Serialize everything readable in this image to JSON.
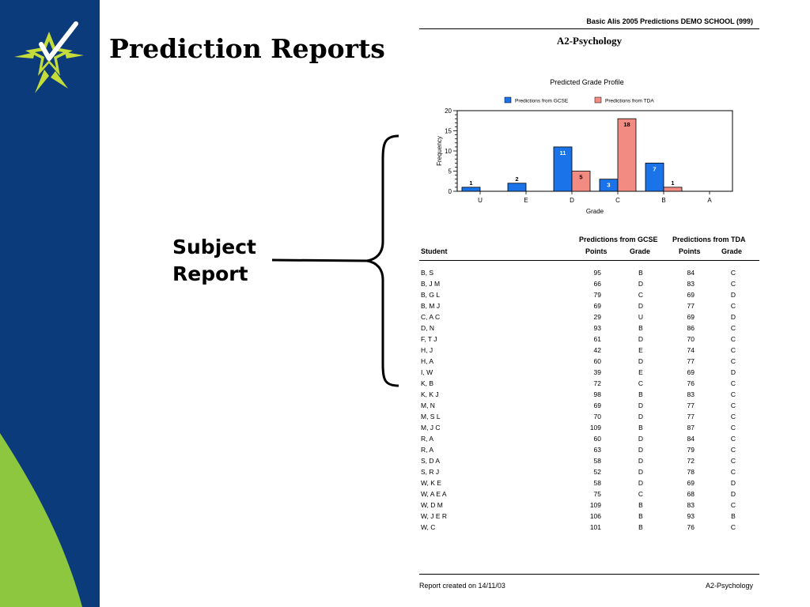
{
  "slide": {
    "title": "Prediction Reports",
    "callout_line1": "Subject",
    "callout_line2": "Report",
    "colors": {
      "sidebar_blue": "#0b3b7a",
      "sidebar_green": "#8dc63f"
    }
  },
  "report": {
    "header": "Basic Alis 2005 Predictions DEMO SCHOOL (999)",
    "subject": "A2-Psychology",
    "footer_left": "Report created on 14/11/03",
    "footer_right": "A2-Psychology",
    "table": {
      "group_headers": [
        "Predictions from GCSE",
        "Predictions from TDA"
      ],
      "columns": [
        "Student",
        "Points",
        "Grade",
        "Points",
        "Grade"
      ],
      "rows": [
        [
          "B, S",
          "95",
          "B",
          "84",
          "C"
        ],
        [
          "B, J M",
          "66",
          "D",
          "83",
          "C"
        ],
        [
          "B, G L",
          "79",
          "C",
          "69",
          "D"
        ],
        [
          "B, M J",
          "69",
          "D",
          "77",
          "C"
        ],
        [
          "C, A C",
          "29",
          "U",
          "69",
          "D"
        ],
        [
          "D, N",
          "93",
          "B",
          "86",
          "C"
        ],
        [
          "F, T J",
          "61",
          "D",
          "70",
          "C"
        ],
        [
          "H, J",
          "42",
          "E",
          "74",
          "C"
        ],
        [
          "H, A",
          "60",
          "D",
          "77",
          "C"
        ],
        [
          "I, W",
          "39",
          "E",
          "69",
          "D"
        ],
        [
          "K, B",
          "72",
          "C",
          "76",
          "C"
        ],
        [
          "K, K J",
          "98",
          "B",
          "83",
          "C"
        ],
        [
          "M, N",
          "69",
          "D",
          "77",
          "C"
        ],
        [
          "M, S L",
          "70",
          "D",
          "77",
          "C"
        ],
        [
          "M, J C",
          "109",
          "B",
          "87",
          "C"
        ],
        [
          "R, A",
          "60",
          "D",
          "84",
          "C"
        ],
        [
          "R, A",
          "63",
          "D",
          "79",
          "C"
        ],
        [
          "S, D A",
          "58",
          "D",
          "72",
          "C"
        ],
        [
          "S, R J",
          "52",
          "D",
          "78",
          "C"
        ],
        [
          "W, K E",
          "58",
          "D",
          "69",
          "D"
        ],
        [
          "W, A E A",
          "75",
          "C",
          "68",
          "D"
        ],
        [
          "W, D M",
          "109",
          "B",
          "83",
          "C"
        ],
        [
          "W, J E R",
          "106",
          "B",
          "93",
          "B"
        ],
        [
          "W, C",
          "101",
          "B",
          "76",
          "C"
        ]
      ]
    }
  },
  "chart_data": {
    "type": "bar",
    "title": "Predicted Grade Profile",
    "xlabel": "Grade",
    "ylabel": "Frequency",
    "categories": [
      "U",
      "E",
      "D",
      "C",
      "B",
      "A"
    ],
    "series": [
      {
        "name": "Predictions from GCSE",
        "values": [
          1,
          2,
          11,
          3,
          7,
          null
        ],
        "color": "#1a73e8"
      },
      {
        "name": "Predictions from TDA",
        "values": [
          null,
          null,
          5,
          18,
          1,
          null
        ],
        "color": "#f28b82"
      }
    ],
    "ylim": [
      0,
      20
    ],
    "yticks": [
      "0",
      "5",
      "10",
      "15",
      "20"
    ],
    "legend": "top",
    "grid": false
  }
}
